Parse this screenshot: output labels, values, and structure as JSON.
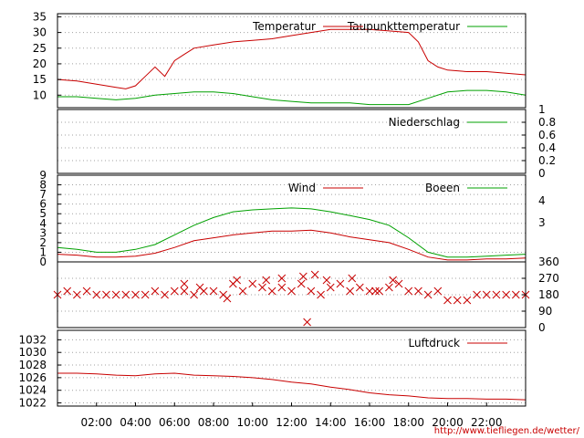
{
  "url_text": "http://www.tiefliegen.de/wetter/",
  "colors": {
    "red": "#c80000",
    "green": "#00a000",
    "grid": "#a0a0a0",
    "frame": "#000000"
  },
  "time_axis": {
    "start_hour": 0,
    "end_hour": 24,
    "tick_labels": [
      "02:00",
      "04:00",
      "06:00",
      "08:00",
      "10:00",
      "12:00",
      "14:00",
      "16:00",
      "18:00",
      "20:00",
      "22:00"
    ],
    "tick_hours": [
      2,
      4,
      6,
      8,
      10,
      12,
      14,
      16,
      18,
      20,
      22
    ]
  },
  "chart_data": [
    {
      "type": "line",
      "id": "temperature",
      "ylim": [
        6,
        36
      ],
      "yticks": [
        10,
        15,
        20,
        25,
        30,
        35
      ],
      "ytick_side": "left",
      "legend": [
        "Temperatur",
        "Taupunkttemperatur"
      ],
      "series": [
        {
          "name": "Temperatur",
          "color": "red",
          "x": [
            0,
            1,
            2,
            3,
            3.5,
            4,
            4.5,
            5,
            5.5,
            6,
            6.5,
            7,
            8,
            9,
            10,
            11,
            12,
            13,
            14,
            15,
            16,
            17,
            18,
            18.5,
            19,
            19.5,
            20,
            21,
            22,
            23,
            24
          ],
          "y": [
            15,
            14.5,
            13.5,
            12.5,
            12,
            13,
            16,
            19,
            16,
            21,
            23,
            25,
            26,
            27,
            27.5,
            28,
            29,
            30,
            31,
            31,
            31,
            30.5,
            30,
            27,
            21,
            19,
            18,
            17.5,
            17.5,
            17,
            16.5
          ]
        },
        {
          "name": "Taupunkttemperatur",
          "color": "green",
          "x": [
            0,
            1,
            2,
            3,
            4,
            5,
            6,
            7,
            8,
            9,
            10,
            11,
            12,
            13,
            14,
            15,
            16,
            17,
            18,
            19,
            20,
            21,
            22,
            23,
            24
          ],
          "y": [
            9.5,
            9.5,
            9,
            8.5,
            9,
            10,
            10.5,
            11,
            11,
            10.5,
            9.5,
            8.5,
            8,
            7.5,
            7.5,
            7.5,
            7,
            7,
            7,
            9,
            11,
            11.5,
            11.5,
            11,
            10
          ]
        }
      ]
    },
    {
      "type": "line",
      "id": "precipitation",
      "ylim": [
        0,
        1
      ],
      "yticks": [
        0,
        0.2,
        0.4,
        0.6,
        0.8,
        1
      ],
      "ytick_labels": [
        "0",
        "0.2",
        "0.4",
        "0.6",
        "0.8",
        "1"
      ],
      "ytick_side": "right",
      "legend": [
        "Niederschlag"
      ],
      "series": [
        {
          "name": "Niederschlag",
          "color": "green",
          "x": [
            0,
            24
          ],
          "y": [
            0,
            0
          ]
        }
      ]
    },
    {
      "type": "line",
      "id": "wind",
      "ylim": [
        0,
        9
      ],
      "yticks": [
        0,
        1,
        2,
        3,
        4,
        5,
        6,
        7,
        8,
        9
      ],
      "ytick_side": "left",
      "right_labels": [
        "4",
        "3"
      ],
      "legend": [
        "Wind",
        "Boeen"
      ],
      "series": [
        {
          "name": "Wind",
          "color": "red",
          "x": [
            0,
            1,
            2,
            3,
            4,
            5,
            6,
            7,
            8,
            9,
            10,
            11,
            12,
            13,
            14,
            15,
            16,
            17,
            18,
            19,
            20,
            21,
            22,
            23,
            24
          ],
          "y": [
            0.8,
            0.7,
            0.5,
            0.5,
            0.6,
            0.9,
            1.5,
            2.2,
            2.5,
            2.8,
            3.0,
            3.2,
            3.2,
            3.3,
            3.0,
            2.6,
            2.3,
            2.0,
            1.3,
            0.5,
            0.2,
            0.2,
            0.3,
            0.3,
            0.4
          ]
        },
        {
          "name": "Boeen",
          "color": "green",
          "x": [
            0,
            1,
            2,
            3,
            4,
            5,
            6,
            7,
            8,
            9,
            10,
            11,
            12,
            13,
            14,
            15,
            16,
            17,
            18,
            19,
            20,
            21,
            22,
            23,
            24
          ],
          "y": [
            1.5,
            1.3,
            1.0,
            1.0,
            1.3,
            1.8,
            2.8,
            3.8,
            4.6,
            5.2,
            5.4,
            5.5,
            5.6,
            5.5,
            5.2,
            4.8,
            4.4,
            3.8,
            2.5,
            1.0,
            0.5,
            0.5,
            0.6,
            0.7,
            0.8
          ]
        }
      ]
    },
    {
      "type": "scatter",
      "id": "wind_direction",
      "ylim": [
        0,
        360
      ],
      "yticks": [
        0,
        90,
        180,
        270,
        360
      ],
      "ytick_side": "right",
      "series": [
        {
          "name": "",
          "color": "red",
          "marker": "x",
          "x": [
            0,
            0.5,
            1,
            1.5,
            2,
            2.5,
            3,
            3.5,
            4,
            4.5,
            5,
            5.5,
            6,
            6.5,
            7,
            7.5,
            8,
            8.5,
            9,
            9.5,
            10,
            10.5,
            11,
            11.5,
            12,
            12.5,
            13,
            13.5,
            14,
            14.5,
            15,
            15.5,
            16,
            16.5,
            17,
            17.5,
            18,
            18.5,
            19,
            19.5,
            20,
            20.5,
            21,
            21.5,
            22,
            22.5,
            23,
            23.5,
            24,
            6.5,
            9.2,
            10.7,
            11.5,
            12.6,
            13.8,
            7.3,
            16.3,
            17.2,
            12.8,
            13.2,
            8.7,
            15.1
          ],
          "y": [
            180,
            200,
            180,
            200,
            180,
            180,
            180,
            180,
            180,
            180,
            200,
            180,
            200,
            200,
            180,
            200,
            200,
            180,
            240,
            200,
            240,
            220,
            200,
            220,
            200,
            240,
            200,
            180,
            220,
            240,
            200,
            220,
            200,
            200,
            220,
            240,
            200,
            200,
            180,
            200,
            150,
            150,
            150,
            180,
            180,
            180,
            180,
            180,
            180,
            240,
            260,
            260,
            270,
            280,
            260,
            220,
            200,
            260,
            30,
            290,
            160,
            270
          ]
        }
      ]
    },
    {
      "type": "line",
      "id": "pressure",
      "ylim": [
        1021.5,
        1033.5
      ],
      "yticks": [
        1022,
        1024,
        1026,
        1028,
        1030,
        1032
      ],
      "ytick_side": "left",
      "legend": [
        "Luftdruck"
      ],
      "series": [
        {
          "name": "Luftdruck",
          "color": "red",
          "x": [
            0,
            1,
            2,
            3,
            4,
            5,
            6,
            7,
            8,
            9,
            10,
            11,
            12,
            13,
            14,
            15,
            16,
            17,
            18,
            19,
            20,
            21,
            22,
            23,
            24
          ],
          "y": [
            1026.7,
            1026.7,
            1026.6,
            1026.4,
            1026.3,
            1026.6,
            1026.7,
            1026.4,
            1026.3,
            1026.2,
            1026.0,
            1025.7,
            1025.3,
            1025.0,
            1024.5,
            1024.1,
            1023.6,
            1023.3,
            1023.1,
            1022.8,
            1022.7,
            1022.7,
            1022.6,
            1022.6,
            1022.5
          ]
        }
      ]
    }
  ]
}
